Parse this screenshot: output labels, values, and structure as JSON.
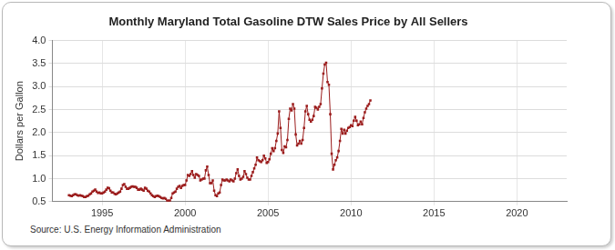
{
  "chart_data": {
    "type": "line",
    "title": "Monthly Maryland Total Gasoline DTW Sales Price by All Sellers",
    "y_label": "Dollars per Gallon",
    "source": "Source: U.S. Energy Information Administration",
    "color": "#9b1c1c",
    "marker": "square",
    "line_style": "solid",
    "grid": true,
    "xlim": [
      1992,
      2023
    ],
    "xticks": [
      1995,
      2000,
      2005,
      2010,
      2015,
      2020
    ],
    "ylim": [
      0.5,
      4.0
    ],
    "yticks": [
      0.5,
      {
        "value": 1,
        "label": "1.0"
      },
      1.5,
      {
        "value": 2,
        "label": "2.0"
      },
      2.5,
      {
        "value": 3,
        "label": "3.0"
      },
      3.5,
      {
        "value": 4,
        "label": "4.0"
      }
    ],
    "x": [
      1993.0,
      1993.083,
      1993.167,
      1993.25,
      1993.333,
      1993.417,
      1993.5,
      1993.583,
      1993.667,
      1993.75,
      1993.833,
      1993.917,
      1994.0,
      1994.083,
      1994.167,
      1994.25,
      1994.333,
      1994.417,
      1994.5,
      1994.583,
      1994.667,
      1994.75,
      1994.833,
      1994.917,
      1995.0,
      1995.083,
      1995.167,
      1995.25,
      1995.333,
      1995.417,
      1995.5,
      1995.583,
      1995.667,
      1995.75,
      1995.833,
      1995.917,
      1996.0,
      1996.083,
      1996.167,
      1996.25,
      1996.333,
      1996.417,
      1996.5,
      1996.583,
      1996.667,
      1996.75,
      1996.833,
      1996.917,
      1997.0,
      1997.083,
      1997.167,
      1997.25,
      1997.333,
      1997.417,
      1997.5,
      1997.583,
      1997.667,
      1997.75,
      1997.833,
      1997.917,
      1998.0,
      1998.083,
      1998.167,
      1998.25,
      1998.333,
      1998.417,
      1998.5,
      1998.583,
      1998.667,
      1998.75,
      1998.833,
      1998.917,
      1999.0,
      1999.083,
      1999.167,
      1999.25,
      1999.333,
      1999.417,
      1999.5,
      1999.583,
      1999.667,
      1999.75,
      1999.833,
      1999.917,
      2000.0,
      2000.083,
      2000.167,
      2000.25,
      2000.333,
      2000.417,
      2000.5,
      2000.583,
      2000.667,
      2000.75,
      2000.833,
      2000.917,
      2001.0,
      2001.083,
      2001.167,
      2001.25,
      2001.333,
      2001.417,
      2001.5,
      2001.583,
      2001.667,
      2001.75,
      2001.833,
      2001.917,
      2002.0,
      2002.083,
      2002.167,
      2002.25,
      2002.333,
      2002.417,
      2002.5,
      2002.583,
      2002.667,
      2002.75,
      2002.833,
      2002.917,
      2003.0,
      2003.083,
      2003.167,
      2003.25,
      2003.333,
      2003.417,
      2003.5,
      2003.583,
      2003.667,
      2003.75,
      2003.833,
      2003.917,
      2004.0,
      2004.083,
      2004.167,
      2004.25,
      2004.333,
      2004.417,
      2004.5,
      2004.583,
      2004.667,
      2004.75,
      2004.833,
      2004.917,
      2005.0,
      2005.083,
      2005.167,
      2005.25,
      2005.333,
      2005.417,
      2005.5,
      2005.583,
      2005.667,
      2005.75,
      2005.833,
      2005.917,
      2006.0,
      2006.083,
      2006.167,
      2006.25,
      2006.333,
      2006.417,
      2006.5,
      2006.583,
      2006.667,
      2006.75,
      2006.833,
      2006.917,
      2007.0,
      2007.083,
      2007.167,
      2007.25,
      2007.333,
      2007.417,
      2007.5,
      2007.583,
      2007.667,
      2007.75,
      2007.833,
      2007.917,
      2008.0,
      2008.083,
      2008.167,
      2008.25,
      2008.333,
      2008.417,
      2008.5,
      2008.583,
      2008.667,
      2008.75,
      2008.833,
      2008.917,
      2009.0,
      2009.083,
      2009.167,
      2009.25,
      2009.333,
      2009.417,
      2009.5,
      2009.583,
      2009.667,
      2009.75,
      2009.833,
      2009.917,
      2010.0,
      2010.083,
      2010.167,
      2010.25,
      2010.333,
      2010.417,
      2010.5,
      2010.583,
      2010.667,
      2010.75,
      2010.833,
      2010.917,
      2011.0,
      2011.083,
      2011.167
    ],
    "values": [
      0.64,
      0.63,
      0.62,
      0.64,
      0.66,
      0.66,
      0.64,
      0.63,
      0.64,
      0.63,
      0.62,
      0.6,
      0.6,
      0.62,
      0.63,
      0.66,
      0.68,
      0.72,
      0.74,
      0.76,
      0.72,
      0.69,
      0.7,
      0.68,
      0.68,
      0.7,
      0.72,
      0.76,
      0.8,
      0.79,
      0.74,
      0.7,
      0.7,
      0.67,
      0.66,
      0.68,
      0.7,
      0.72,
      0.78,
      0.86,
      0.88,
      0.82,
      0.78,
      0.78,
      0.8,
      0.82,
      0.83,
      0.82,
      0.82,
      0.8,
      0.76,
      0.76,
      0.78,
      0.76,
      0.74,
      0.8,
      0.78,
      0.74,
      0.72,
      0.68,
      0.64,
      0.62,
      0.6,
      0.62,
      0.63,
      0.62,
      0.6,
      0.58,
      0.57,
      0.58,
      0.56,
      0.52,
      0.52,
      0.52,
      0.58,
      0.68,
      0.7,
      0.72,
      0.78,
      0.82,
      0.84,
      0.8,
      0.84,
      0.86,
      0.86,
      0.96,
      1.08,
      1.06,
      1.1,
      1.16,
      1.08,
      1.02,
      1.1,
      1.08,
      1.06,
      0.96,
      0.98,
      1.0,
      1.0,
      1.18,
      1.26,
      1.08,
      0.9,
      0.9,
      0.96,
      0.74,
      0.64,
      0.62,
      0.68,
      0.7,
      0.86,
      0.98,
      0.96,
      0.96,
      0.98,
      0.96,
      0.94,
      0.98,
      0.96,
      0.94,
      1.0,
      1.12,
      1.2,
      1.06,
      0.98,
      1.0,
      1.04,
      1.16,
      1.1,
      1.02,
      0.98,
      0.98,
      1.06,
      1.14,
      1.22,
      1.3,
      1.46,
      1.4,
      1.38,
      1.36,
      1.4,
      1.5,
      1.44,
      1.34,
      1.36,
      1.42,
      1.54,
      1.66,
      1.6,
      1.66,
      1.82,
      1.98,
      2.46,
      2.1,
      1.62,
      1.56,
      1.7,
      1.68,
      1.84,
      2.3,
      2.52,
      2.48,
      2.62,
      2.52,
      1.96,
      1.72,
      1.76,
      1.82,
      1.76,
      1.84,
      2.1,
      2.46,
      2.58,
      2.4,
      2.28,
      2.24,
      2.28,
      2.36,
      2.56,
      2.54,
      2.5,
      2.56,
      2.62,
      2.96,
      3.28,
      3.48,
      3.52,
      3.1,
      3.04,
      2.4,
      1.54,
      1.2,
      1.3,
      1.4,
      1.46,
      1.6,
      1.82,
      2.08,
      1.98,
      2.06,
      1.98,
      2.04,
      2.1,
      2.12,
      2.16,
      2.14,
      2.26,
      2.34,
      2.26,
      2.16,
      2.18,
      2.24,
      2.18,
      2.32,
      2.44,
      2.52,
      2.58,
      2.62,
      2.7
    ]
  }
}
